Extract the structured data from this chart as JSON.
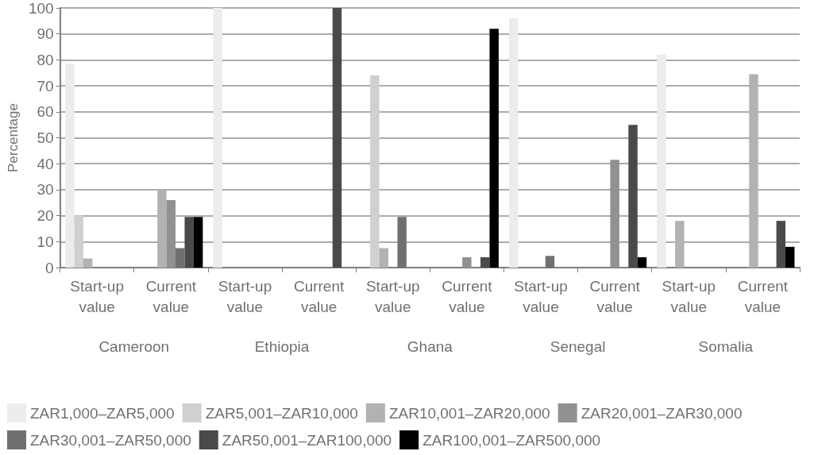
{
  "chart_data": {
    "type": "bar",
    "ylabel": "Percentage",
    "categories": [
      "Start-up value",
      "Current value",
      "Start-up value",
      "Current value",
      "Start-up value",
      "Current value",
      "Start-up value",
      "Current value",
      "Start-up value",
      "Current value"
    ],
    "annotations": [
      "Cameroon",
      "Ethiopia",
      "Ghana",
      "Senegal",
      "Somalia"
    ],
    "series": [
      {
        "name": "ZAR1,000–ZAR5,000",
        "color": "#ececec",
        "values": [
          78.5,
          null,
          100,
          null,
          null,
          null,
          96,
          null,
          82,
          null
        ]
      },
      {
        "name": "ZAR5,001–ZAR10,000",
        "color": "#d0d0d0",
        "values": [
          20,
          null,
          null,
          null,
          74,
          null,
          null,
          null,
          null,
          null
        ]
      },
      {
        "name": "ZAR10,001–ZAR20,000",
        "color": "#b2b2b2",
        "values": [
          3.5,
          30,
          null,
          null,
          7.5,
          null,
          null,
          null,
          18,
          74.5
        ]
      },
      {
        "name": "ZAR20,001–ZAR30,000",
        "color": "#919191",
        "values": [
          null,
          26,
          null,
          null,
          null,
          4,
          null,
          41.5,
          null,
          null
        ]
      },
      {
        "name": "ZAR30,001–ZAR50,000",
        "color": "#707070",
        "values": [
          null,
          7.5,
          null,
          null,
          19.5,
          null,
          4.5,
          null,
          null,
          null
        ]
      },
      {
        "name": "ZAR50,001–ZAR100,000",
        "color": "#4a4a4a",
        "values": [
          null,
          19.5,
          null,
          100,
          null,
          4,
          null,
          55,
          null,
          18
        ]
      },
      {
        "name": "ZAR100,001–ZAR500,000",
        "color": "#000000",
        "values": [
          null,
          19.5,
          null,
          null,
          null,
          92,
          null,
          4,
          null,
          8
        ]
      }
    ],
    "ylim": [
      0,
      100
    ],
    "yticks": [
      0,
      10,
      20,
      30,
      40,
      50,
      60,
      70,
      80,
      90,
      100
    ],
    "grid": "y",
    "legend": "bottom"
  }
}
